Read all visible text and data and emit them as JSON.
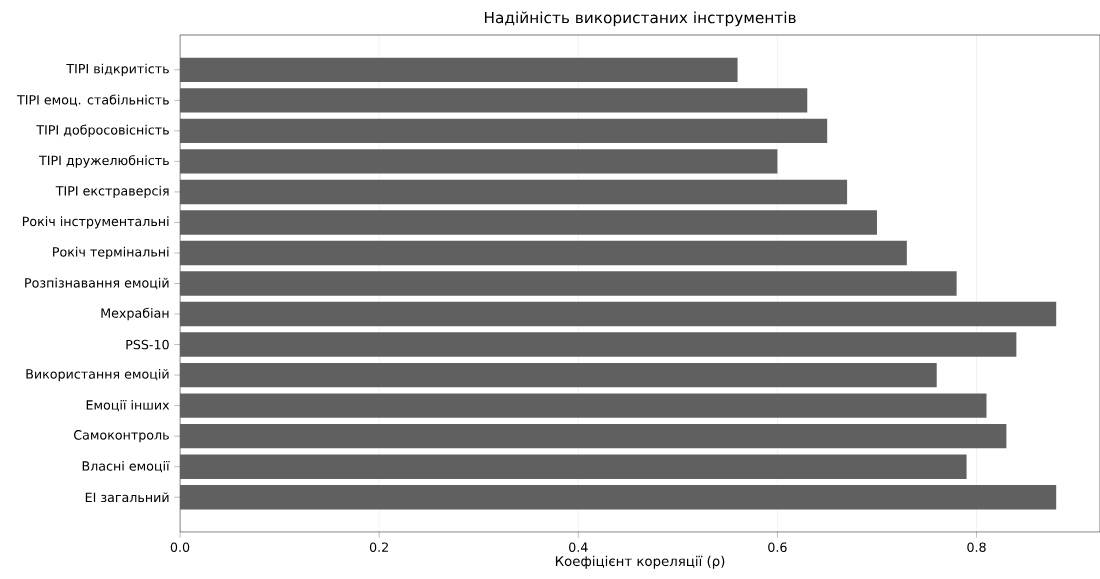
{
  "chart_data": {
    "type": "bar",
    "orientation": "horizontal",
    "title": "Надійність використаних інструментів",
    "xlabel": "Коефіцієнт кореляції (ρ)",
    "categories": [
      "TIPI відкритість",
      "TIPI емоц. стабільність",
      "TIPI добросовісність",
      "TIPI дружелюбність",
      "TIPI екстраверсія",
      "Рокіч інструментальні",
      "Рокіч термінальні",
      "Розпізнавання емоцій",
      "Мехрабіан",
      "PSS-10",
      "Використання емоцій",
      "Емоції інших",
      "Самоконтроль",
      "Власні емоції",
      "EI загальний"
    ],
    "values": [
      0.56,
      0.63,
      0.65,
      0.6,
      0.67,
      0.7,
      0.73,
      0.78,
      0.88,
      0.84,
      0.76,
      0.81,
      0.83,
      0.79,
      0.88
    ],
    "color": "#606060",
    "xlim": [
      0,
      0.924
    ],
    "xticks": [
      {
        "value": 0,
        "label": "0.0"
      },
      0.2,
      0.4,
      0.6,
      0.8
    ],
    "grid": "x"
  }
}
